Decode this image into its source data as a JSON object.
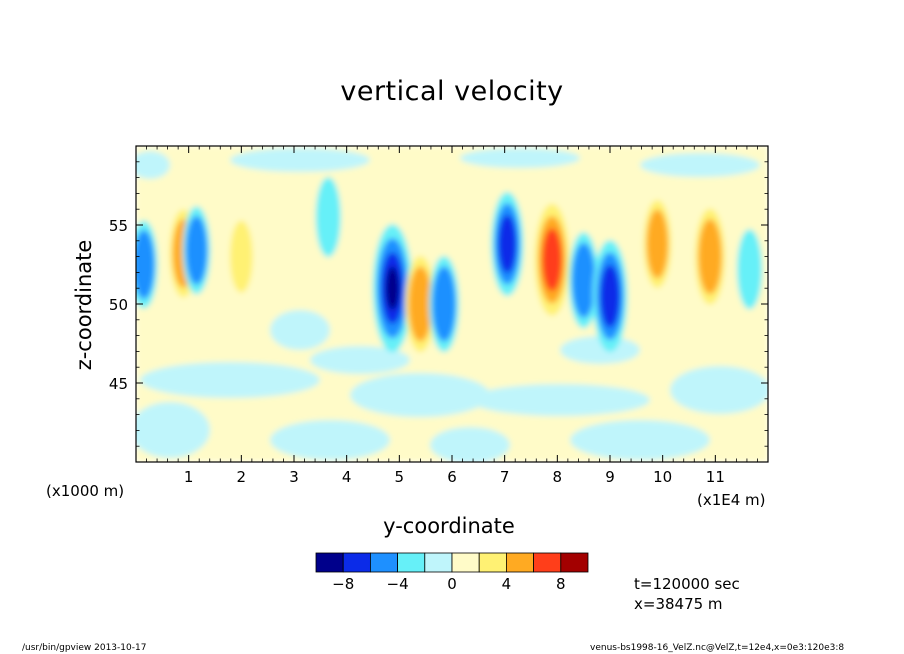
{
  "footer": {
    "left": "/usr/bin/gpview   2013-10-17",
    "right": "venus-bs1998-16_VelZ.nc@VelZ,t=12e4,x=0e3:120e3:8"
  },
  "annotations": {
    "time": "t=120000 sec",
    "x_position": "x=38475 m",
    "x_unit_left": "(x1000 m)",
    "x_unit_right": "(x1E4 m)"
  },
  "colors": {
    "levels": [
      "#00008b",
      "#0b2be8",
      "#1e90ff",
      "#66f0f8",
      "#bff5fb",
      "#fffbc8",
      "#fff173",
      "#ffaa22",
      "#ff3e1a",
      "#a30000"
    ]
  },
  "chart_data": {
    "type": "heatmap",
    "title": "vertical velocity",
    "xlabel": "y-coordinate",
    "ylabel": "z-coordinate",
    "xlim": [
      0,
      120000
    ],
    "ylim": [
      40000,
      60000
    ],
    "x_ticks": [
      10000,
      20000,
      30000,
      40000,
      50000,
      60000,
      70000,
      80000,
      90000,
      100000,
      110000
    ],
    "x_tick_labels": [
      "1",
      "2",
      "3",
      "4",
      "5",
      "6",
      "7",
      "8",
      "9",
      "10",
      "11"
    ],
    "y_ticks": [
      45000,
      50000,
      55000
    ],
    "y_tick_labels": [
      "45",
      "50",
      "55"
    ],
    "colorbar": {
      "boundaries": [
        -10,
        -8,
        -6,
        -4,
        -2,
        0,
        2,
        4,
        6,
        8,
        10
      ],
      "tick_values": [
        -8,
        -4,
        0,
        4,
        8
      ],
      "tick_labels": [
        "−8",
        "−4",
        "0",
        "4",
        "8"
      ]
    },
    "features": [
      {
        "y": 1500,
        "z": 52500,
        "value": -4
      },
      {
        "y": 9000,
        "z": 53200,
        "value": 4
      },
      {
        "y": 11500,
        "z": 53400,
        "value": -4
      },
      {
        "y": 20000,
        "z": 53000,
        "value": 2
      },
      {
        "y": 36500,
        "z": 55500,
        "value": -3
      },
      {
        "y": 48700,
        "z": 51000,
        "value": -9
      },
      {
        "y": 54000,
        "z": 50000,
        "value": 5
      },
      {
        "y": 58500,
        "z": 50000,
        "value": -5
      },
      {
        "y": 70500,
        "z": 53800,
        "value": -6
      },
      {
        "y": 79000,
        "z": 52800,
        "value": 7
      },
      {
        "y": 85000,
        "z": 51500,
        "value": -5
      },
      {
        "y": 90000,
        "z": 50500,
        "value": -7
      },
      {
        "y": 99000,
        "z": 53800,
        "value": 4
      },
      {
        "y": 109000,
        "z": 53000,
        "value": 5
      },
      {
        "y": 116500,
        "z": 52200,
        "value": -3
      }
    ]
  }
}
